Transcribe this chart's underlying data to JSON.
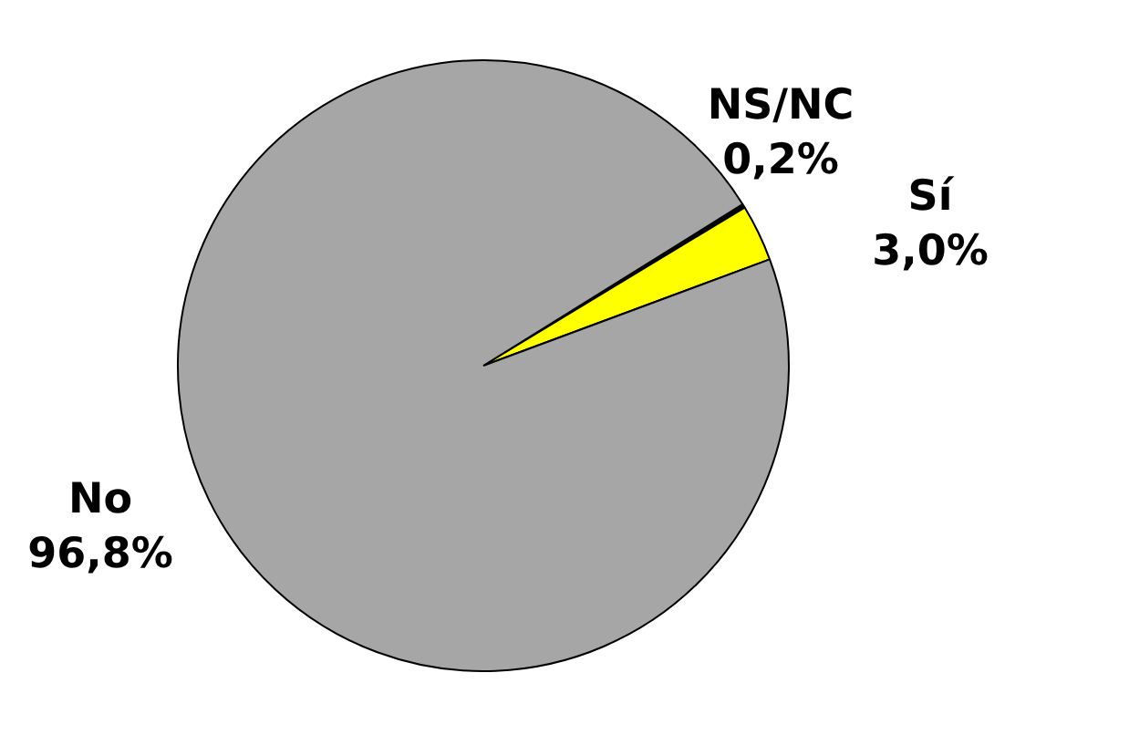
{
  "chart_data": {
    "type": "pie",
    "categories": [
      "NS/NC",
      "Sí",
      "No"
    ],
    "values": [
      0.2,
      3.0,
      96.8
    ],
    "colors": [
      "#000000",
      "#ffff00",
      "#a6a6a6"
    ],
    "value_labels": [
      "0,2%",
      "3,0%",
      "96,8%"
    ],
    "legend": false
  }
}
